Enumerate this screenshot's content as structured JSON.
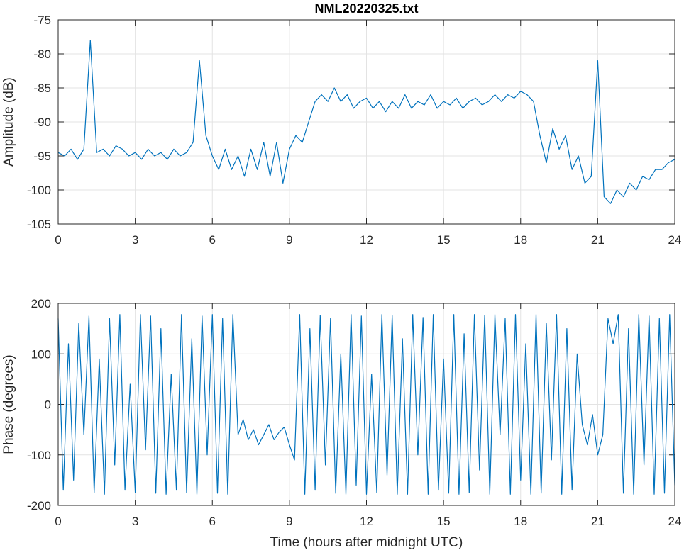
{
  "chart_data": [
    {
      "type": "line",
      "title": "NML20220325.txt",
      "ylabel": "Amplitude (dB)",
      "color": "#0072bd",
      "grid": true,
      "xlim": [
        0,
        24
      ],
      "xticks": [
        0,
        3,
        6,
        9,
        12,
        15,
        18,
        21,
        24
      ],
      "ylim": [
        -105,
        -75
      ],
      "yticks": [
        -105,
        -100,
        -95,
        -90,
        -85,
        -80,
        -75
      ],
      "x": [
        0,
        0.25,
        0.5,
        0.75,
        1,
        1.25,
        1.5,
        1.75,
        2,
        2.25,
        2.5,
        2.75,
        3,
        3.25,
        3.5,
        3.75,
        4,
        4.25,
        4.5,
        4.75,
        5,
        5.25,
        5.5,
        5.75,
        6,
        6.25,
        6.5,
        6.75,
        7,
        7.25,
        7.5,
        7.75,
        8,
        8.25,
        8.5,
        8.75,
        9,
        9.25,
        9.5,
        9.75,
        10,
        10.25,
        10.5,
        10.75,
        11,
        11.25,
        11.5,
        11.75,
        12,
        12.25,
        12.5,
        12.75,
        13,
        13.25,
        13.5,
        13.75,
        14,
        14.25,
        14.5,
        14.75,
        15,
        15.25,
        15.5,
        15.75,
        16,
        16.25,
        16.5,
        16.75,
        17,
        17.25,
        17.5,
        17.75,
        18,
        18.25,
        18.5,
        18.75,
        19,
        19.25,
        19.5,
        19.75,
        20,
        20.25,
        20.5,
        20.75,
        21,
        21.25,
        21.5,
        21.75,
        22,
        22.25,
        22.5,
        22.75,
        23,
        23.25,
        23.5,
        23.75,
        24
      ],
      "values": [
        -94.5,
        -95,
        -94,
        -95.5,
        -94,
        -78,
        -94.5,
        -94,
        -95,
        -93.5,
        -94,
        -95,
        -94.5,
        -95.5,
        -94,
        -95,
        -94.5,
        -95.5,
        -94,
        -95,
        -94.5,
        -93,
        -81,
        -92,
        -95,
        -97,
        -94,
        -97,
        -95,
        -98,
        -94,
        -97,
        -93,
        -98,
        -93,
        -99,
        -94,
        -92,
        -93,
        -90,
        -87,
        -86,
        -87,
        -85,
        -87,
        -86,
        -88,
        -87,
        -86.5,
        -88,
        -87,
        -88.5,
        -87,
        -88,
        -86,
        -88,
        -87,
        -87.5,
        -86,
        -88,
        -87,
        -87.5,
        -86.5,
        -88,
        -87,
        -86.5,
        -87.5,
        -87,
        -86,
        -87,
        -86,
        -86.5,
        -85.5,
        -86,
        -87,
        -92,
        -96,
        -91,
        -94,
        -92,
        -97,
        -95,
        -99,
        -98,
        -81,
        -101,
        -102,
        -100,
        -101,
        -99,
        -100,
        -98,
        -98.5,
        -97,
        -97,
        -96,
        -95.5
      ]
    },
    {
      "type": "line",
      "ylabel": "Phase (degrees)",
      "xlabel": "Time (hours after midnight UTC)",
      "color": "#0072bd",
      "grid": true,
      "xlim": [
        0,
        24
      ],
      "xticks": [
        0,
        3,
        6,
        9,
        12,
        15,
        18,
        21,
        24
      ],
      "ylim": [
        -200,
        200
      ],
      "yticks": [
        -200,
        -100,
        0,
        100,
        200
      ],
      "x": [
        0,
        0.2,
        0.4,
        0.6,
        0.8,
        1,
        1.2,
        1.4,
        1.6,
        1.8,
        2,
        2.2,
        2.4,
        2.6,
        2.8,
        3,
        3.2,
        3.4,
        3.6,
        3.8,
        4,
        4.2,
        4.4,
        4.6,
        4.8,
        5,
        5.2,
        5.4,
        5.6,
        5.8,
        6,
        6.2,
        6.4,
        6.6,
        6.8,
        7,
        7.2,
        7.4,
        7.6,
        7.8,
        8,
        8.2,
        8.4,
        8.6,
        8.8,
        9,
        9.2,
        9.4,
        9.6,
        9.8,
        10,
        10.2,
        10.4,
        10.6,
        10.8,
        11,
        11.2,
        11.4,
        11.6,
        11.8,
        12,
        12.2,
        12.4,
        12.6,
        12.8,
        13,
        13.2,
        13.4,
        13.6,
        13.8,
        14,
        14.2,
        14.4,
        14.6,
        14.8,
        15,
        15.2,
        15.4,
        15.6,
        15.8,
        16,
        16.2,
        16.4,
        16.6,
        16.8,
        17,
        17.2,
        17.4,
        17.6,
        17.8,
        18,
        18.2,
        18.4,
        18.6,
        18.8,
        19,
        19.2,
        19.4,
        19.6,
        19.8,
        20,
        20.2,
        20.4,
        20.6,
        20.8,
        21,
        21.2,
        21.4,
        21.6,
        21.8,
        22,
        22.2,
        22.4,
        22.6,
        22.8,
        23,
        23.2,
        23.4,
        23.6,
        23.8,
        24
      ],
      "values": [
        170,
        -170,
        120,
        -150,
        160,
        -60,
        175,
        -175,
        90,
        -178,
        170,
        -120,
        178,
        -170,
        40,
        -175,
        178,
        -90,
        175,
        -176,
        150,
        -178,
        60,
        -170,
        178,
        -175,
        130,
        -178,
        175,
        -100,
        178,
        -176,
        170,
        -178,
        178,
        -60,
        -30,
        -70,
        -50,
        -80,
        -60,
        -40,
        -70,
        -55,
        -45,
        -80,
        -110,
        178,
        -178,
        150,
        -170,
        176,
        -120,
        170,
        -176,
        100,
        -178,
        178,
        -160,
        175,
        -178,
        60,
        -175,
        178,
        -140,
        176,
        -178,
        130,
        -178,
        178,
        -100,
        172,
        -178,
        178,
        -170,
        90,
        -176,
        178,
        -178,
        140,
        -175,
        178,
        -130,
        176,
        -178,
        178,
        -60,
        170,
        -178,
        178,
        -150,
        120,
        -178,
        178,
        -176,
        160,
        -110,
        178,
        -178,
        150,
        -170,
        100,
        -40,
        -80,
        -20,
        -100,
        -60,
        170,
        120,
        178,
        -176,
        150,
        -178,
        178,
        -120,
        175,
        -178,
        170,
        -176,
        178,
        -160
      ]
    }
  ]
}
